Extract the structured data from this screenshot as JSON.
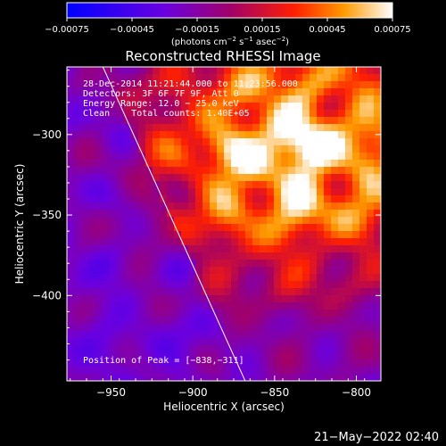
{
  "chart_data": {
    "type": "heatmap",
    "title": "Reconstructed RHESSI Image",
    "xlabel": "Heliocentric X (arcsec)",
    "ylabel": "Heliocentric Y (arcsec)",
    "xlim": [
      -977,
      -785
    ],
    "ylim": [
      -453,
      -258
    ],
    "x_ticks": [
      -950,
      -900,
      -850,
      -800
    ],
    "y_ticks": [
      -300,
      -350,
      -400
    ],
    "x_tick_labels": [
      "−950",
      "−900",
      "−850",
      "−800"
    ],
    "y_tick_labels": [
      "−300",
      "−350",
      "−400"
    ],
    "colorbar": {
      "range": [
        -0.00075,
        0.00075
      ],
      "ticks": [
        -0.00075,
        -0.00045,
        -0.00015,
        0.00015,
        0.00045,
        0.00075
      ],
      "tick_labels": [
        "−0.00075",
        "−0.00045",
        "−0.00015",
        "0.00015",
        "0.00045",
        "0.00075"
      ],
      "unit_prefix": "(photons cm",
      "unit_exp1": "−2",
      "unit_mid": " s",
      "unit_exp2": "−1",
      "unit_mid2": " asec",
      "unit_exp3": "−2",
      "unit_suffix": ")"
    },
    "peak": {
      "x": -838,
      "y": -311
    },
    "limb_line": {
      "x1": -955,
      "y1": -258,
      "x2": -868,
      "y2": -453
    },
    "grid": false,
    "legend": "none"
  },
  "annotations": {
    "time_range": "28-Dec-2014 11:21:44.000 to 11:23:56.000",
    "detectors": "Detectors: 3F 6F 7F 9F, Att 0",
    "energy": "Energy Range: 12.0 − 25.0 keV",
    "clean": "Clean    Total counts: 1.40E+05",
    "peak_label": "Position of Peak = [−838,−311]"
  },
  "footer": {
    "timestamp": "21−May−2022 02:40"
  }
}
